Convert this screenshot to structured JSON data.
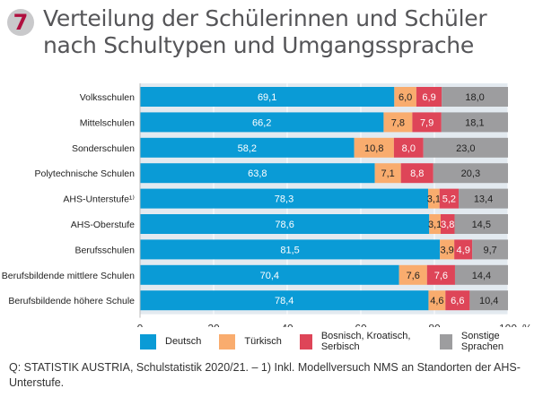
{
  "header": {
    "badge": "7",
    "title": "Verteilung der Schülerinnen und Schüler nach Schultypen und Umgangssprache"
  },
  "colors": {
    "Deutsch": "#0a9bd6",
    "Türkisch": "#f9ac6e",
    "Bosnisch, Kroatisch, Serbisch": "#de4558",
    "Sonstige Sprachen": "#9d9d9f",
    "band": "#e3eaf0",
    "badge_number": "#b0103f"
  },
  "chart_data": {
    "type": "bar",
    "orientation": "horizontal",
    "stacked": true,
    "title": "Verteilung der Schülerinnen und Schüler nach Schultypen und Umgangssprache",
    "xlabel": "%",
    "ylabel": "",
    "xlim": [
      0,
      100
    ],
    "x_ticks": [
      0,
      20,
      40,
      60,
      80,
      100
    ],
    "x_tick_labels": [
      "0",
      "20",
      "40",
      "60",
      "80",
      "100"
    ],
    "x_unit": "%",
    "legend_position": "bottom",
    "categories": [
      "Volksschulen",
      "Mittelschulen",
      "Sonderschulen",
      "Polytechnische Schulen",
      "AHS-Unterstufe¹⁾",
      "AHS-Oberstufe",
      "Berufsschulen",
      "Berufsbildende mittlere Schulen",
      "Berufsbildende höhere Schule"
    ],
    "series": [
      {
        "name": "Deutsch",
        "values": [
          69.1,
          66.2,
          58.2,
          63.8,
          78.3,
          78.6,
          81.5,
          70.4,
          78.4
        ],
        "labels": [
          "69,1",
          "66,2",
          "58,2",
          "63,8",
          "78,3",
          "78,6",
          "81,5",
          "70,4",
          "78,4"
        ],
        "label_color": "#ffffff"
      },
      {
        "name": "Türkisch",
        "values": [
          6.0,
          7.8,
          10.8,
          7.1,
          3.1,
          3.1,
          3.9,
          7.6,
          4.6
        ],
        "labels": [
          "6,0",
          "7,8",
          "10,8",
          "7,1",
          "3,1",
          "3,1",
          "3,9",
          "7,6",
          "4,6"
        ],
        "label_color": "#222222"
      },
      {
        "name": "Bosnisch, Kroatisch, Serbisch",
        "values": [
          6.9,
          7.9,
          8.0,
          8.8,
          5.2,
          3.8,
          4.9,
          7.6,
          6.6
        ],
        "labels": [
          "6,9",
          "7,9",
          "8,0",
          "8,8",
          "5,2",
          "3,8",
          "4,9",
          "7,6",
          "6,6"
        ],
        "label_color": "#ffffff"
      },
      {
        "name": "Sonstige Sprachen",
        "values": [
          18.0,
          18.1,
          23.0,
          20.3,
          13.4,
          14.5,
          9.7,
          14.4,
          10.4
        ],
        "labels": [
          "18,0",
          "18,1",
          "23,0",
          "20,3",
          "13,4",
          "14,5",
          "9,7",
          "14,4",
          "10,4"
        ],
        "label_color": "#222222"
      }
    ]
  },
  "legend": {
    "items": [
      "Deutsch",
      "Türkisch",
      "Bosnisch, Kroatisch, Serbisch",
      "Sonstige Sprachen"
    ]
  },
  "source": "Q: STATISTIK AUSTRIA, Schulstatistik 2020/21. – 1) Inkl. Modellversuch NMS an Standorten der AHS-Unterstufe."
}
